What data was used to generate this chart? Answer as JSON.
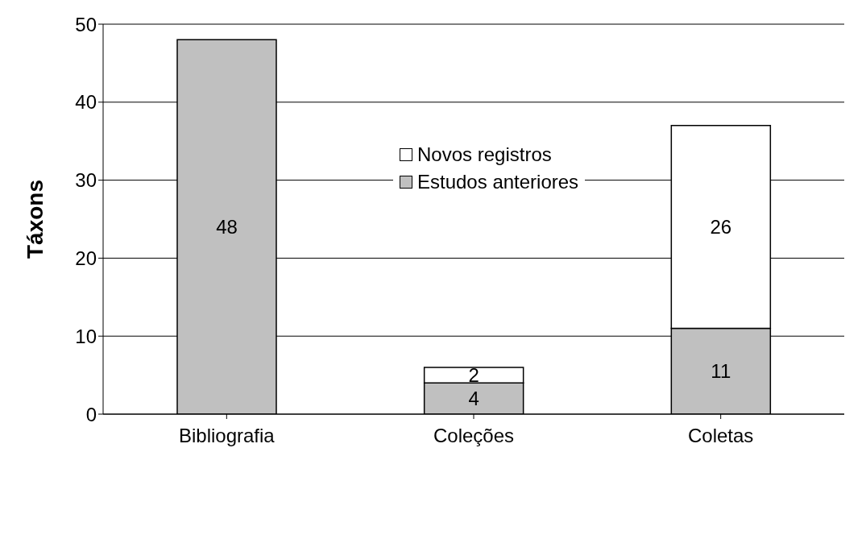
{
  "chart_data": {
    "type": "bar",
    "stacked": true,
    "ylabel": "Táxons",
    "categories": [
      "Bibliografia",
      "Coleções",
      "Coletas"
    ],
    "series": [
      {
        "name": "Estudos anteriores",
        "color": "#c0c0c0",
        "values": [
          48,
          4,
          11
        ]
      },
      {
        "name": "Novos registros",
        "color": "#ffffff",
        "values": [
          null,
          2,
          26
        ]
      }
    ],
    "ylim": [
      0,
      50
    ],
    "yticks": [
      0,
      10,
      20,
      30,
      40,
      50
    ],
    "grid": "y",
    "legend": "top",
    "data_labels": true
  }
}
